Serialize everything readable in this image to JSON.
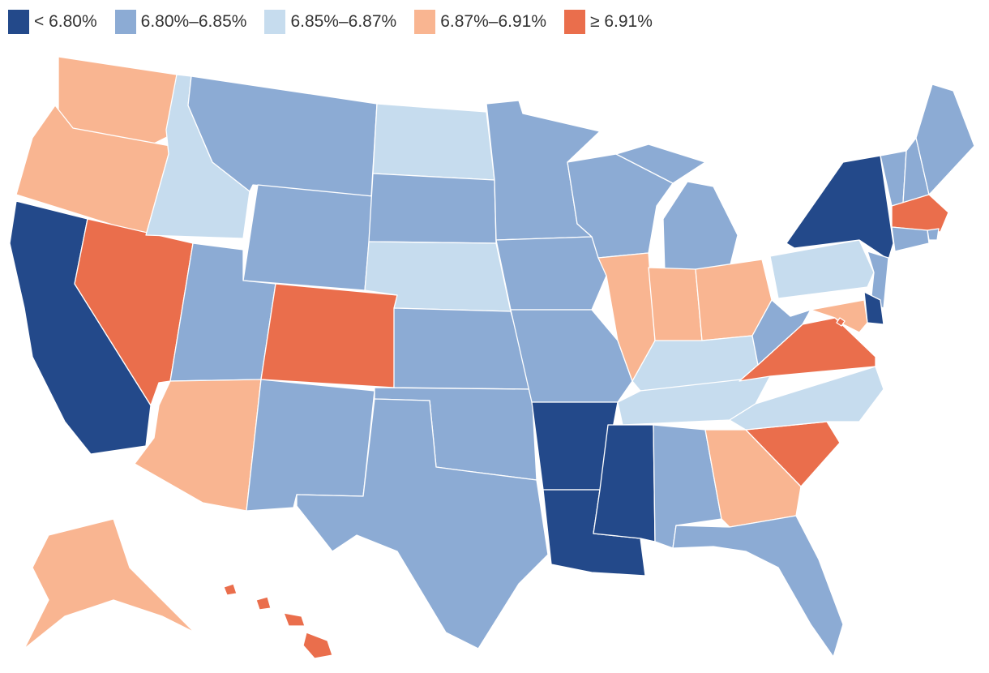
{
  "legend": [
    {
      "label": "< 6.80%",
      "color": "#23498a"
    },
    {
      "label": "6.80%–6.85%",
      "color": "#8cabd4"
    },
    {
      "label": "6.85%–6.87%",
      "color": "#c6dcee"
    },
    {
      "label": "6.87%–6.91%",
      "color": "#f9b591"
    },
    {
      "label": "≥ 6.91%",
      "color": "#ea6e4c"
    }
  ],
  "states": {
    "WA": "6.87%–6.91%",
    "OR": "6.87%–6.91%",
    "CA": "< 6.80%",
    "NV": "≥ 6.91%",
    "ID": "6.85%–6.87%",
    "MT": "6.80%–6.85%",
    "WY": "6.80%–6.85%",
    "UT": "6.80%–6.85%",
    "AZ": "6.87%–6.91%",
    "CO": "≥ 6.91%",
    "NM": "6.80%–6.85%",
    "ND": "6.85%–6.87%",
    "SD": "6.80%–6.85%",
    "NE": "6.85%–6.87%",
    "KS": "6.80%–6.85%",
    "OK": "6.80%–6.85%",
    "TX": "6.80%–6.85%",
    "MN": "6.80%–6.85%",
    "IA": "6.80%–6.85%",
    "MO": "6.80%–6.85%",
    "AR": "< 6.80%",
    "LA": "< 6.80%",
    "WI": "6.80%–6.85%",
    "IL": "6.87%–6.91%",
    "MI": "6.80%–6.85%",
    "IN": "6.87%–6.91%",
    "OH": "6.87%–6.91%",
    "KY": "6.85%–6.87%",
    "TN": "6.85%–6.87%",
    "MS": "< 6.80%",
    "AL": "6.80%–6.85%",
    "GA": "6.87%–6.91%",
    "FL": "6.80%–6.85%",
    "SC": "≥ 6.91%",
    "NC": "6.85%–6.87%",
    "VA": "≥ 6.91%",
    "WV": "6.80%–6.85%",
    "PA": "6.85%–6.87%",
    "NY": "< 6.80%",
    "VT": "6.80%–6.85%",
    "NH": "6.80%–6.85%",
    "ME": "6.80%–6.85%",
    "MA": "≥ 6.91%",
    "RI": "6.80%–6.85%",
    "CT": "6.80%–6.85%",
    "NJ": "6.80%–6.85%",
    "DE": "< 6.80%",
    "MD": "6.87%–6.91%",
    "DC": "≥ 6.91%",
    "AK": "6.87%–6.91%",
    "HI": "≥ 6.91%"
  }
}
